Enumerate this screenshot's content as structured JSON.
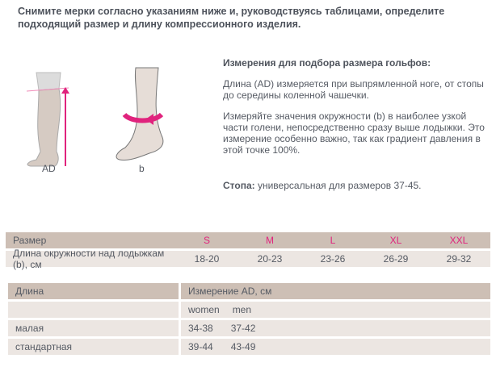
{
  "title": "Снимите мерки согласно указаниям ниже и, руководствуясь таблицами, определите подходящий размер и длину компрессионного изделия.",
  "figures": [
    {
      "label": "AD"
    },
    {
      "label": "b"
    }
  ],
  "info": {
    "heading": "Измерения для подбора размера гольфов:",
    "p1": "Длина (AD) измеряется при выпрямленной ноге, от стопы до середины коленной чашечки.",
    "p2": "Измеряйте значения окружности (b) в наиболее узкой части голени, непосредственно сразу выше лодыжки. Это измерение особенно важно, так как градиент давления в этой точке 100%.",
    "foot_bold": "Стопа:",
    "foot_text": " универсальная для размеров 37-45."
  },
  "size_table": {
    "header_label": "Размер",
    "sizes": [
      "S",
      "M",
      "L",
      "XL",
      "XXL"
    ],
    "row_label": "Длина окружности над лодыжкам (b), см",
    "values": [
      "18-20",
      "20-23",
      "23-26",
      "26-29",
      "29-32"
    ]
  },
  "length_table": {
    "col1": "Длина",
    "col2": "Измерение AD, см",
    "sub": [
      "women",
      "men"
    ],
    "rows": [
      {
        "label": "малая",
        "women": "34-38",
        "men": "37-42"
      },
      {
        "label": "стандартная",
        "women": "39-44",
        "men": "43-49"
      }
    ]
  },
  "colors": {
    "accent": "#e0237d",
    "header_bg": "#cdbfb5",
    "row_bg": "#ece6e2"
  }
}
